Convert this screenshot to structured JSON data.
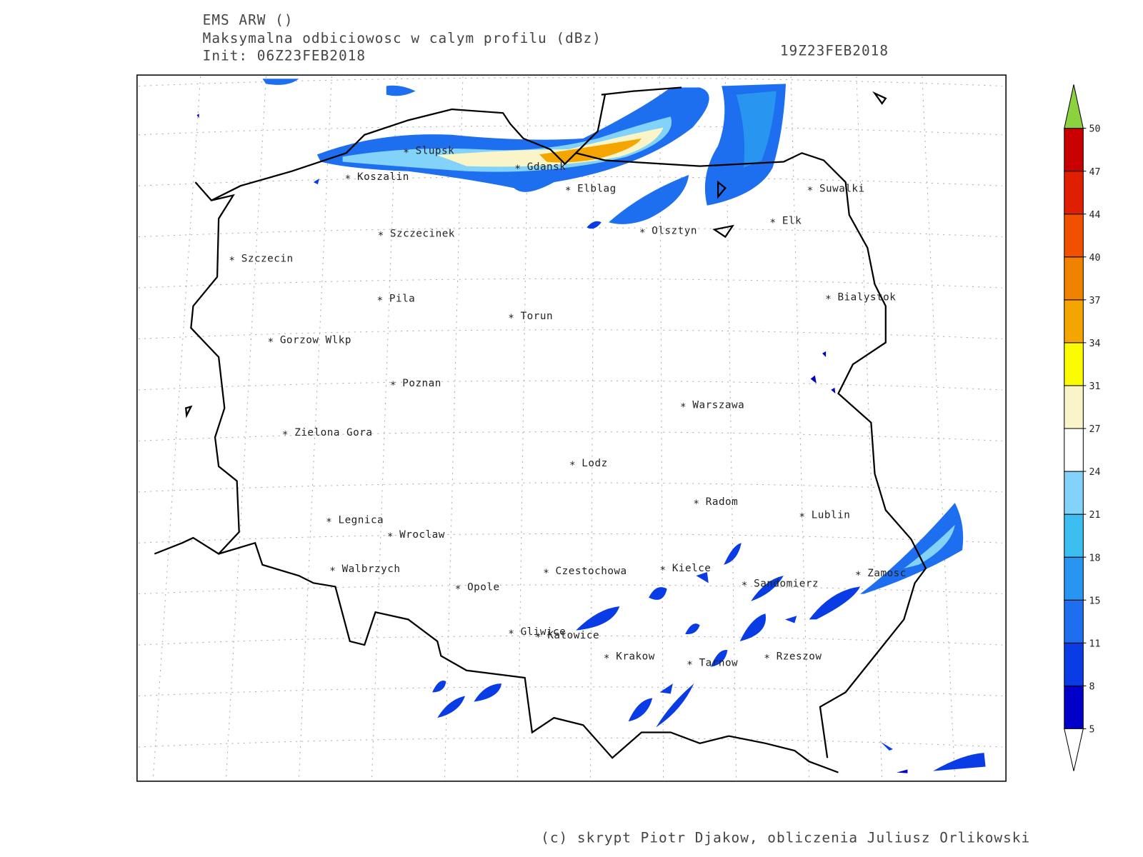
{
  "header": {
    "model": "EMS ARW ()",
    "field": "Maksymalna odbiciowosc w calym profilu (dBz)",
    "init": "Init: 06Z23FEB2018",
    "valid": "19Z23FEB2018"
  },
  "cities": [
    "Slupsk",
    "Koszalin",
    "Gdansk",
    "Elblag",
    "Suwalki",
    "Elk",
    "Olsztyn",
    "Szczecinek",
    "Szczecin",
    "Pila",
    "Bialystok",
    "Torun",
    "Gorzow Wlkp",
    "Poznan",
    "Warszawa",
    "Zielona Gora",
    "Lodz",
    "Radom",
    "Lublin",
    "Legnica",
    "Wroclaw",
    "Walbrzych",
    "Czestochowa",
    "Kielce",
    "Sandomierz",
    "Zamosc",
    "Opole",
    "Gliwice",
    "Katowice",
    "Krakow",
    "Tarnow",
    "Rzeszow"
  ],
  "colorbar": {
    "levels": [
      5,
      8,
      11,
      15,
      18,
      21,
      24,
      27,
      31,
      34,
      37,
      40,
      44,
      47,
      50
    ],
    "colors": [
      "#0000c8",
      "#0a3ce6",
      "#1e6ef0",
      "#2896f0",
      "#3cbef0",
      "#82d2fa",
      "#ffffff",
      "#faf5c8",
      "#fafa00",
      "#f5a500",
      "#f08200",
      "#f05000",
      "#e01e00",
      "#c80000"
    ],
    "under_color": "#ffffff",
    "over_color": "#8cd23c"
  },
  "footer": "(c) skrypt Piotr Djakow, obliczenia Juliusz Orlikowski"
}
